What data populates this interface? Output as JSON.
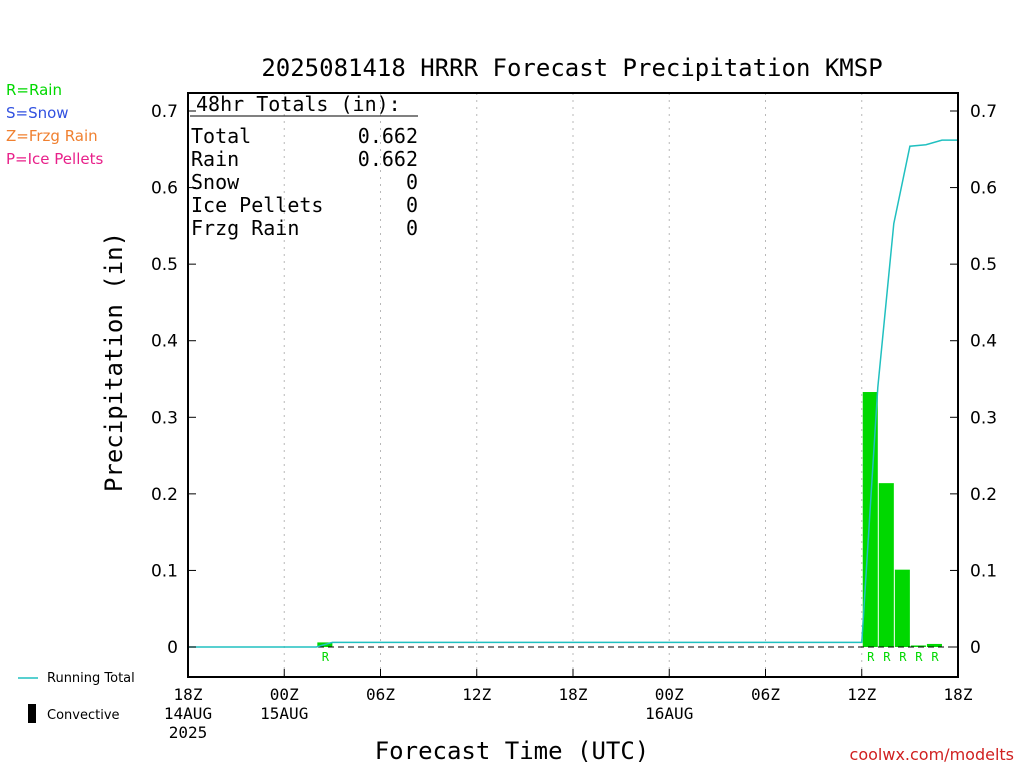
{
  "chart_data": {
    "type": "bar",
    "title": "2025081418 HRRR Forecast Precipitation KMSP",
    "xlabel": "Forecast Time (UTC)",
    "ylabel": "Precipitation (in)",
    "ylim": [
      0,
      0.7
    ],
    "yticks": [
      0,
      0.1,
      0.2,
      0.3,
      0.4,
      0.5,
      0.6,
      0.7
    ],
    "xlim_hours": [
      0,
      48
    ],
    "x_ticks": [
      {
        "hour": 0,
        "label": "18Z",
        "sub1": "14AUG",
        "sub2": "2025"
      },
      {
        "hour": 6,
        "label": "00Z",
        "sub1": "15AUG",
        "sub2": ""
      },
      {
        "hour": 12,
        "label": "06Z",
        "sub1": "",
        "sub2": ""
      },
      {
        "hour": 18,
        "label": "12Z",
        "sub1": "",
        "sub2": ""
      },
      {
        "hour": 24,
        "label": "18Z",
        "sub1": "",
        "sub2": ""
      },
      {
        "hour": 30,
        "label": "00Z",
        "sub1": "16AUG",
        "sub2": ""
      },
      {
        "hour": 36,
        "label": "06Z",
        "sub1": "",
        "sub2": ""
      },
      {
        "hour": 42,
        "label": "12Z",
        "sub1": "",
        "sub2": ""
      },
      {
        "hour": 48,
        "label": "18Z",
        "sub1": "",
        "sub2": ""
      }
    ],
    "bars": [
      {
        "hour": 9,
        "value": 0.006,
        "type": "R"
      },
      {
        "hour": 43,
        "value": 0.333,
        "type": "R"
      },
      {
        "hour": 44,
        "value": 0.214,
        "type": "R"
      },
      {
        "hour": 45,
        "value": 0.101,
        "type": "R"
      },
      {
        "hour": 46,
        "value": 0.002,
        "type": "R"
      },
      {
        "hour": 47,
        "value": 0.004,
        "type": "R"
      }
    ],
    "running_total": {
      "name": "Running Total",
      "hours": [
        0,
        8,
        9,
        10,
        42,
        43,
        44,
        45,
        46,
        47,
        48
      ],
      "values": [
        0,
        0,
        0.006,
        0.006,
        0.006,
        0.339,
        0.553,
        0.654,
        0.656,
        0.662,
        0.662
      ]
    },
    "colors": {
      "rain": "#00d800",
      "snow": "#3050e0",
      "frzg_rain": "#f08030",
      "ice_pellets": "#e8208a",
      "running_total": "#20c0c0",
      "convective": "#000000",
      "grid": "#b8b8b8"
    }
  },
  "totals_box": {
    "header": "48hr Totals (in):",
    "rows": [
      {
        "label": "Total",
        "value": "0.662"
      },
      {
        "label": "Rain",
        "value": "0.662"
      },
      {
        "label": "Snow",
        "value": "0"
      },
      {
        "label": "Ice Pellets",
        "value": "0"
      },
      {
        "label": "Frzg Rain",
        "value": "0"
      }
    ]
  },
  "precip_legend": [
    {
      "text": "R=Rain",
      "color": "#00d800"
    },
    {
      "text": "S=Snow",
      "color": "#3050e0"
    },
    {
      "text": "Z=Frzg Rain",
      "color": "#f08030"
    },
    {
      "text": "P=Ice Pellets",
      "color": "#e8208a"
    }
  ],
  "bottom_legend": {
    "running_total": "Running Total",
    "convective": "Convective"
  },
  "credit": "coolwx.com/modelts"
}
